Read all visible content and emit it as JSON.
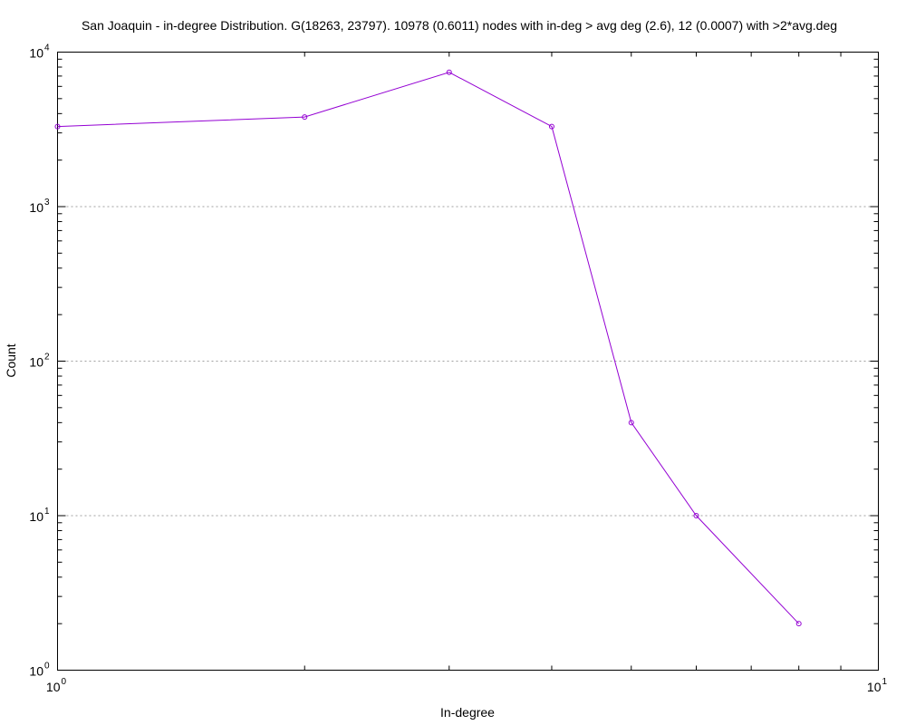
{
  "chart_data": {
    "type": "line",
    "title": "San Joaquin - in-degree Distribution. G(18263, 23797). 10978 (0.6011) nodes with in-deg > avg deg (2.6), 12 (0.0007) with >2*avg.deg",
    "xlabel": "In-degree",
    "ylabel": "Count",
    "x_scale": "log",
    "y_scale": "log",
    "xlim": [
      1,
      10
    ],
    "ylim": [
      1,
      10000
    ],
    "x_ticks": [
      {
        "value": 1,
        "base": "10",
        "exp": "0"
      },
      {
        "value": 10,
        "base": "10",
        "exp": "1"
      }
    ],
    "y_ticks": [
      {
        "value": 1,
        "base": "10",
        "exp": "0"
      },
      {
        "value": 10,
        "base": "10",
        "exp": "1"
      },
      {
        "value": 100,
        "base": "10",
        "exp": "2"
      },
      {
        "value": 1000,
        "base": "10",
        "exp": "3"
      },
      {
        "value": 10000,
        "base": "10",
        "exp": "4"
      }
    ],
    "grid": "horizontal dotted at major y ticks",
    "legend": "none",
    "color": "#9400d3",
    "series": [
      {
        "x": [
          1,
          2,
          3,
          4,
          5,
          6,
          8
        ],
        "y": [
          3300,
          3800,
          7400,
          3300,
          40,
          10,
          2
        ]
      }
    ]
  }
}
